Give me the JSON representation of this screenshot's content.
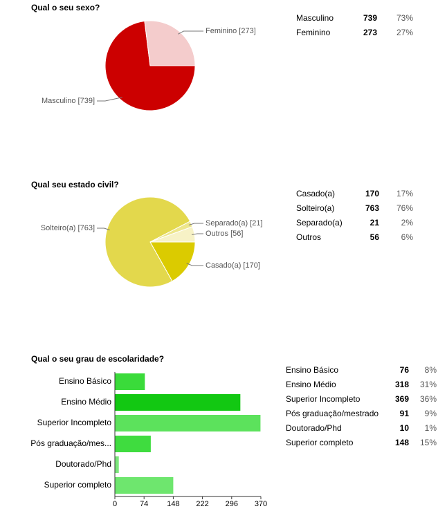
{
  "chart_data": [
    {
      "type": "pie",
      "title": "Qual o seu sexo?",
      "categories": [
        "Masculino",
        "Feminino"
      ],
      "values": [
        739,
        273
      ],
      "value_labels": [
        "Masculino [739]",
        "Feminino [273]"
      ],
      "percentages": [
        {
          "value": 73,
          "label": "73%"
        },
        {
          "value": 27,
          "label": "27%"
        }
      ],
      "colors": [
        "#cc0000",
        "#f4cccc"
      ]
    },
    {
      "type": "pie",
      "title": "Qual seu estado civil?",
      "categories": [
        "Casado(a)",
        "Solteiro(a)",
        "Separado(a)",
        "Outros"
      ],
      "values": [
        170,
        763,
        21,
        56
      ],
      "value_labels": [
        "Casado(a) [170]",
        "Solteiro(a) [763]",
        "Separado(a) [21]",
        "Outros [56]"
      ],
      "percentages": [
        {
          "value": 17,
          "label": "17%"
        },
        {
          "value": 76,
          "label": "76%"
        },
        {
          "value": 2,
          "label": "2%"
        },
        {
          "value": 6,
          "label": "6%"
        }
      ],
      "colors": [
        "#dbcb00",
        "#e3d84c",
        "#ede68c",
        "#f7f2c6"
      ]
    },
    {
      "type": "bar",
      "title": "Qual o seu grau de escolaridade?",
      "categories": [
        "Ensino Básico",
        "Ensino Médio",
        "Superior Incompleto",
        "Pós graduação/mestrado",
        "Doutorado/Phd",
        "Superior completo"
      ],
      "category_axis_labels": [
        "Ensino Básico",
        "Ensino Médio",
        "Superior Incompleto",
        "Pós graduação/mes...",
        "Doutorado/Phd",
        "Superior completo"
      ],
      "values": [
        76,
        318,
        369,
        91,
        10,
        148
      ],
      "percentages": [
        {
          "value": 8,
          "label": "8%"
        },
        {
          "value": 31,
          "label": "31%"
        },
        {
          "value": 36,
          "label": "36%"
        },
        {
          "value": 9,
          "label": "9%"
        },
        {
          "value": 1,
          "label": "1%"
        },
        {
          "value": 15,
          "label": "15%"
        }
      ],
      "colors": [
        "#3adb3a",
        "#12c812",
        "#5ce25c",
        "#3fdc3f",
        "#7be67b",
        "#6ee66e"
      ],
      "xlim": [
        0,
        370
      ],
      "xticks": [
        0,
        74,
        148,
        222,
        296,
        370
      ]
    }
  ]
}
